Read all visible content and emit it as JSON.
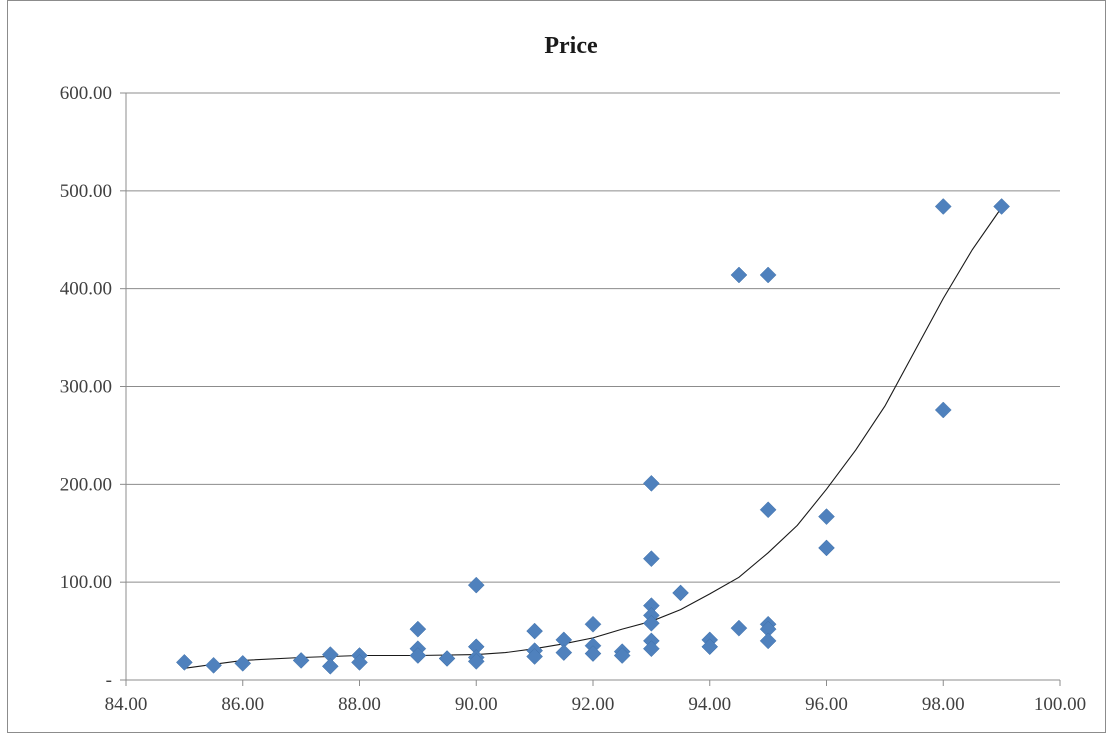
{
  "chart_data": {
    "type": "scatter",
    "title": "Price",
    "xlabel": "",
    "ylabel": "",
    "xlim": [
      84,
      100
    ],
    "ylim": [
      0,
      600
    ],
    "x_ticks": [
      84,
      86,
      88,
      90,
      92,
      94,
      96,
      98,
      100
    ],
    "x_tick_labels": [
      "84.00",
      "86.00",
      "88.00",
      "90.00",
      "92.00",
      "94.00",
      "96.00",
      "98.00",
      "100.00"
    ],
    "y_ticks": [
      0,
      100,
      200,
      300,
      400,
      500,
      600
    ],
    "y_tick_labels": [
      "-",
      "100.00",
      "200.00",
      "300.00",
      "400.00",
      "500.00",
      "600.00"
    ],
    "grid": "horizontal",
    "legend": "none",
    "marker_color": "#4f81bd",
    "trendline": {
      "type": "polynomial",
      "color": "#1a1a1a",
      "points": [
        [
          85,
          12
        ],
        [
          85.5,
          16
        ],
        [
          86,
          20
        ],
        [
          87,
          23
        ],
        [
          88,
          25
        ],
        [
          89,
          25
        ],
        [
          90,
          26
        ],
        [
          90.5,
          28
        ],
        [
          91,
          32
        ],
        [
          91.5,
          37
        ],
        [
          92,
          43
        ],
        [
          92.5,
          52
        ],
        [
          93,
          60
        ],
        [
          93.5,
          72
        ],
        [
          94,
          88
        ],
        [
          94.5,
          105
        ],
        [
          95,
          130
        ],
        [
          95.5,
          158
        ],
        [
          96,
          195
        ],
        [
          96.5,
          235
        ],
        [
          97,
          280
        ],
        [
          97.5,
          335
        ],
        [
          98,
          390
        ],
        [
          98.5,
          440
        ],
        [
          99,
          483
        ]
      ]
    },
    "series": [
      {
        "points": [
          [
            85,
            18
          ],
          [
            85.5,
            15
          ],
          [
            86,
            17
          ],
          [
            87,
            20
          ],
          [
            87.5,
            26
          ],
          [
            87.5,
            14
          ],
          [
            88,
            25
          ],
          [
            88,
            18
          ],
          [
            89,
            52
          ],
          [
            89,
            32
          ],
          [
            89,
            25
          ],
          [
            89.5,
            22
          ],
          [
            90,
            97
          ],
          [
            90,
            34
          ],
          [
            90,
            23
          ],
          [
            90,
            19
          ],
          [
            91,
            50
          ],
          [
            91,
            30
          ],
          [
            91,
            24
          ],
          [
            91.5,
            41
          ],
          [
            91.5,
            28
          ],
          [
            92,
            57
          ],
          [
            92,
            35
          ],
          [
            92,
            27
          ],
          [
            92.5,
            29
          ],
          [
            92.5,
            25
          ],
          [
            93,
            201
          ],
          [
            93,
            124
          ],
          [
            93,
            76
          ],
          [
            93,
            66
          ],
          [
            93,
            58
          ],
          [
            93,
            40
          ],
          [
            93,
            32
          ],
          [
            93.5,
            89
          ],
          [
            94,
            41
          ],
          [
            94,
            34
          ],
          [
            94.5,
            414
          ],
          [
            94.5,
            53
          ],
          [
            95,
            414
          ],
          [
            95,
            174
          ],
          [
            95,
            57
          ],
          [
            95,
            52
          ],
          [
            95,
            40
          ],
          [
            96,
            167
          ],
          [
            96,
            135
          ],
          [
            98,
            484
          ],
          [
            98,
            276
          ],
          [
            99,
            484
          ]
        ]
      }
    ]
  }
}
